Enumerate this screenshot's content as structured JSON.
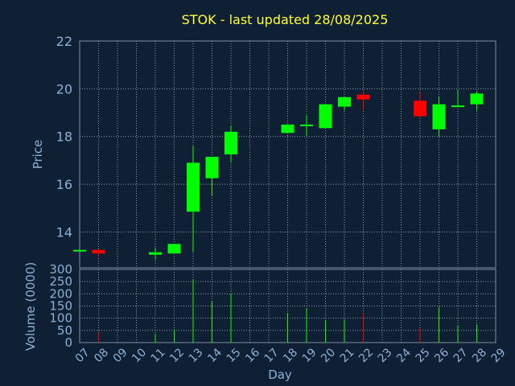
{
  "chart_data": {
    "type": "candlestick",
    "title": "STOK - last updated 28/08/2025",
    "xlabel": "Day",
    "price_ylabel": "Price",
    "volume_ylabel": "Volume (0000)",
    "price_ylim": [
      12.5,
      22
    ],
    "price_yticks": [
      14,
      16,
      18,
      20,
      22
    ],
    "volume_ylim": [
      0,
      300
    ],
    "volume_yticks": [
      0,
      50,
      100,
      150,
      200,
      250,
      300
    ],
    "x_ticks": [
      "07",
      "08",
      "09",
      "10",
      "11",
      "12",
      "13",
      "14",
      "15",
      "16",
      "17",
      "18",
      "19",
      "20",
      "21",
      "22",
      "23",
      "24",
      "25",
      "26",
      "27",
      "28",
      "29"
    ],
    "grid": true,
    "up_color": "#00ff00",
    "down_color": "#ff0000",
    "candles": [
      {
        "day": 7,
        "open": 13.25,
        "close": 13.25,
        "high": 13.25,
        "low": 13.25,
        "volume": 0
      },
      {
        "day": 8,
        "open": 13.25,
        "close": 13.1,
        "high": 13.25,
        "low": 12.95,
        "volume": 40
      },
      {
        "day": 11,
        "open": 13.05,
        "close": 13.15,
        "high": 13.35,
        "low": 12.85,
        "volume": 35
      },
      {
        "day": 12,
        "open": 13.1,
        "close": 13.5,
        "high": 13.5,
        "low": 13.1,
        "volume": 55
      },
      {
        "day": 13,
        "open": 14.85,
        "close": 16.9,
        "high": 17.6,
        "low": 13.15,
        "volume": 260
      },
      {
        "day": 14,
        "open": 16.25,
        "close": 17.15,
        "high": 17.15,
        "low": 15.5,
        "volume": 170
      },
      {
        "day": 15,
        "open": 17.25,
        "close": 18.2,
        "high": 18.45,
        "low": 16.9,
        "volume": 200
      },
      {
        "day": 18,
        "open": 18.15,
        "close": 18.5,
        "high": 18.5,
        "low": 18.15,
        "volume": 120
      },
      {
        "day": 19,
        "open": 18.5,
        "close": 18.5,
        "high": 18.9,
        "low": 18.05,
        "volume": 140
      },
      {
        "day": 20,
        "open": 18.35,
        "close": 19.35,
        "high": 19.35,
        "low": 18.35,
        "volume": 90
      },
      {
        "day": 21,
        "open": 19.25,
        "close": 19.65,
        "high": 19.65,
        "low": 19.1,
        "volume": 95
      },
      {
        "day": 22,
        "open": 19.75,
        "close": 19.55,
        "high": 19.9,
        "low": 19.1,
        "volume": 120
      },
      {
        "day": 25,
        "open": 19.5,
        "close": 18.85,
        "high": 19.85,
        "low": 18.8,
        "volume": 60
      },
      {
        "day": 26,
        "open": 18.3,
        "close": 19.35,
        "high": 19.65,
        "low": 18.0,
        "volume": 145
      },
      {
        "day": 27,
        "open": 19.3,
        "close": 19.3,
        "high": 19.95,
        "low": 19.25,
        "volume": 70
      },
      {
        "day": 28,
        "open": 19.35,
        "close": 19.8,
        "high": 19.9,
        "low": 19.1,
        "volume": 75
      }
    ]
  }
}
